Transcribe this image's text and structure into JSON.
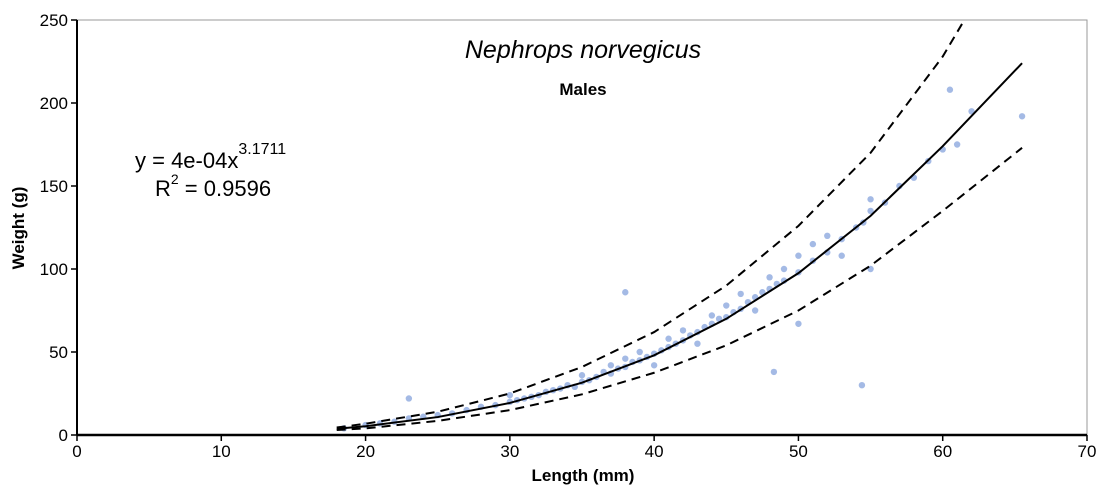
{
  "chart_data": {
    "type": "scatter",
    "title": "Nephrops norvegicus",
    "subtitle": "Males",
    "x_label": "Length (mm)",
    "y_label": "Weight (g)",
    "annotation": {
      "eq_left": "y = 4e-04x",
      "eq_exp": "3.1711",
      "r_left": "R",
      "r_exp": "2",
      "r_right": " = 0.9596"
    },
    "color": "#5a82d0",
    "xlim": [
      0,
      70
    ],
    "xticks": [
      0,
      10,
      20,
      30,
      40,
      50,
      60,
      70
    ],
    "ylim": [
      0,
      250
    ],
    "yticks": [
      0,
      50,
      100,
      150,
      200,
      250
    ],
    "x": [
      18.5,
      20,
      21,
      22,
      23,
      24,
      25,
      26,
      27,
      28,
      29,
      30,
      30,
      30.5,
      31,
      31.5,
      32,
      32.5,
      33,
      33.5,
      34,
      34.5,
      35,
      35,
      35.5,
      36,
      36.5,
      37,
      37,
      37.5,
      38,
      38,
      38.5,
      39,
      39,
      39.5,
      40,
      40,
      40.5,
      41,
      41,
      41.5,
      42,
      42,
      42.5,
      43,
      43,
      43.5,
      44,
      44,
      44.5,
      45,
      45,
      45.5,
      46,
      46,
      46.5,
      47,
      47,
      47.5,
      48,
      48,
      48.5,
      49,
      49,
      50,
      50,
      51,
      51,
      52,
      52,
      53,
      53,
      54,
      54.5,
      55,
      55,
      56,
      57,
      58,
      59,
      60,
      60.5,
      61,
      62,
      65.5,
      38,
      54.4,
      48.3,
      23,
      55,
      50
    ],
    "values": [
      4,
      6,
      7,
      8,
      10,
      11,
      12,
      13,
      15,
      17,
      18,
      20,
      24,
      21,
      22,
      23,
      24,
      26,
      27,
      28,
      30,
      29,
      32,
      36,
      33,
      35,
      38,
      37,
      42,
      40,
      41,
      46,
      44,
      45,
      50,
      47,
      49,
      42,
      51,
      53,
      58,
      55,
      57,
      63,
      60,
      62,
      55,
      65,
      67,
      72,
      70,
      71,
      78,
      74,
      76,
      85,
      80,
      83,
      75,
      86,
      88,
      95,
      91,
      93,
      100,
      98,
      108,
      105,
      115,
      110,
      120,
      118,
      108,
      125,
      128,
      135,
      142,
      140,
      150,
      155,
      165,
      172,
      208,
      175,
      195,
      192,
      86,
      30,
      38,
      22,
      100,
      67
    ],
    "lines": [
      {
        "dashed": false,
        "x": [
          18,
          20,
          25,
          30,
          35,
          40,
          45,
          50,
          55,
          60,
          65.5
        ],
        "values": [
          3.8,
          5.3,
          10.8,
          19.3,
          31.5,
          48,
          70,
          97.5,
          132,
          174,
          224
        ]
      },
      {
        "dashed": true,
        "x": [
          18,
          20,
          25,
          30,
          35,
          40,
          45,
          50,
          55,
          60,
          61.5
        ],
        "values": [
          4.5,
          6.8,
          14,
          25,
          41,
          62,
          90,
          126,
          170,
          228,
          250
        ]
      },
      {
        "dashed": true,
        "x": [
          18,
          20,
          25,
          30,
          35,
          40,
          45,
          50,
          55,
          60,
          65.5
        ],
        "values": [
          3,
          4,
          8.5,
          15,
          24.5,
          37.5,
          54,
          75,
          102,
          135,
          173
        ]
      }
    ]
  }
}
